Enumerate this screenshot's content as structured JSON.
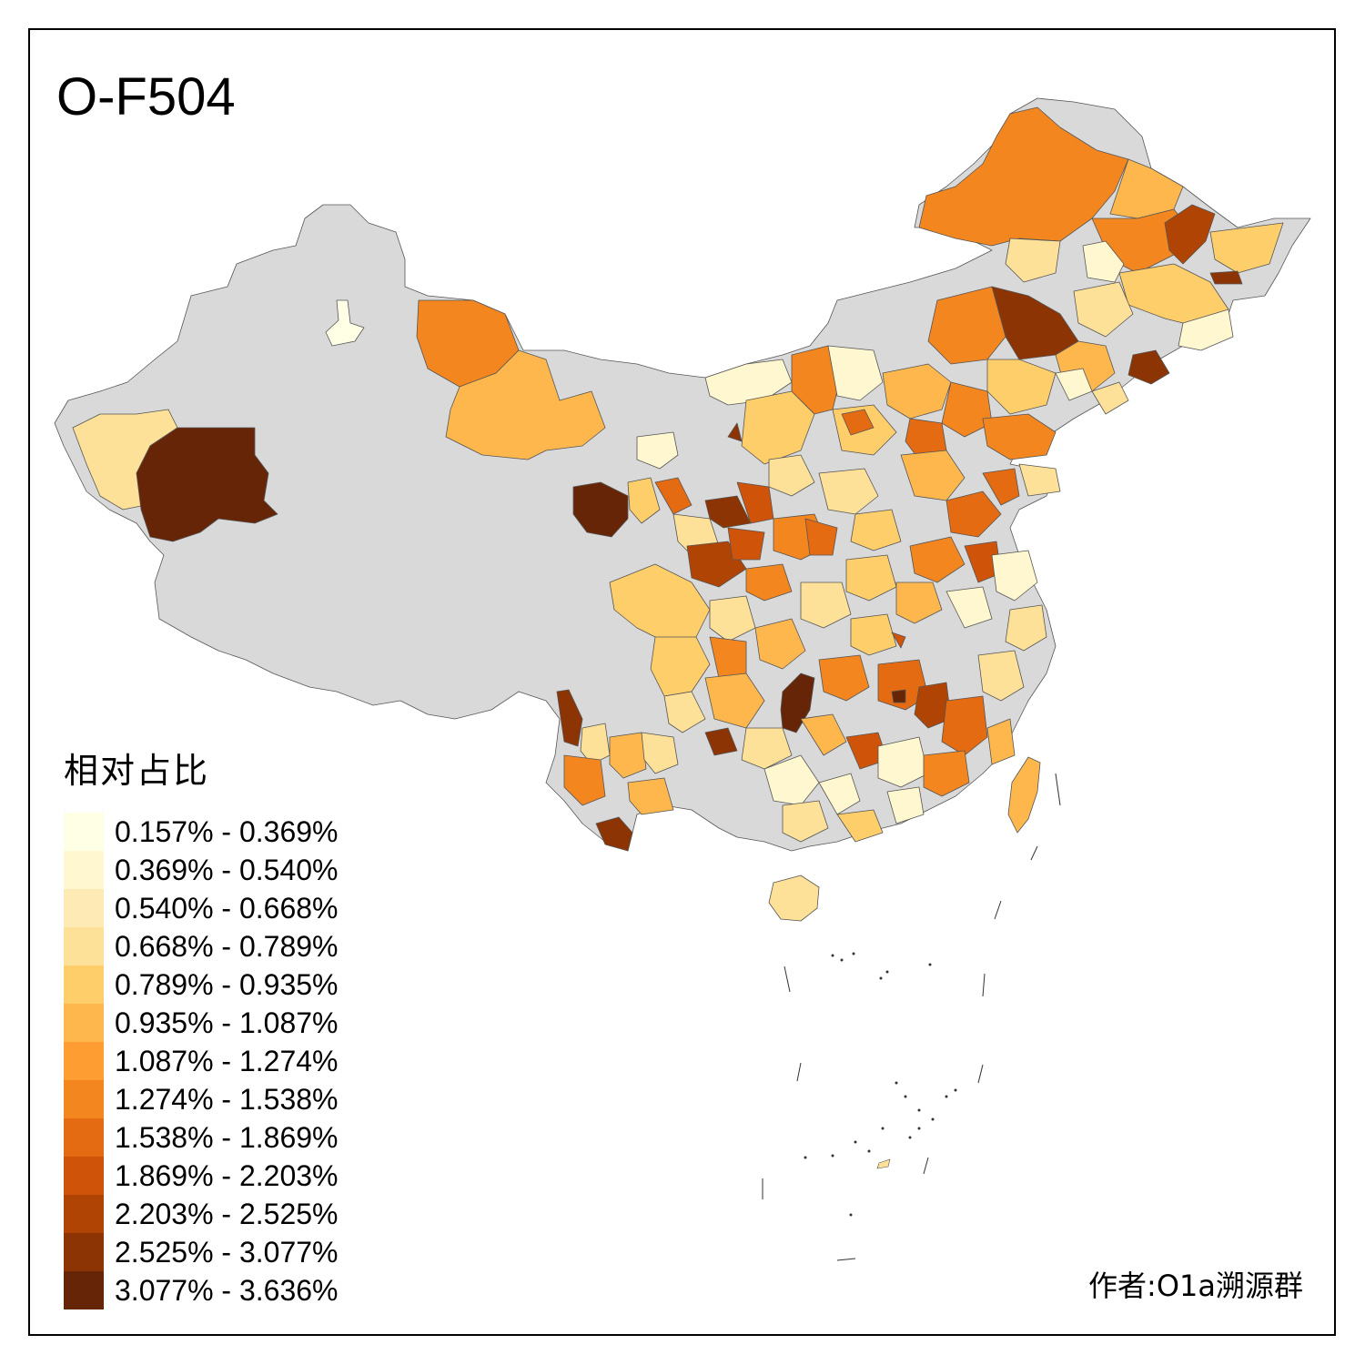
{
  "map": {
    "title": "O-F504",
    "credit": "作者:O1a溯源群",
    "no_data_color": "#d9d9d9",
    "legend": {
      "title": "相对占比",
      "items": [
        {
          "label": "0.157% - 0.369%",
          "color": "#ffffe5"
        },
        {
          "label": "0.369% - 0.540%",
          "color": "#fff7cf"
        },
        {
          "label": "0.540% - 0.668%",
          "color": "#feeab5"
        },
        {
          "label": "0.668% - 0.789%",
          "color": "#fee198"
        },
        {
          "label": "0.789% - 0.935%",
          "color": "#fece6a"
        },
        {
          "label": "0.935% - 1.087%",
          "color": "#feb74c"
        },
        {
          "label": "1.087% - 1.274%",
          "color": "#fe9d32"
        },
        {
          "label": "1.274% - 1.538%",
          "color": "#f3861f"
        },
        {
          "label": "1.538% - 1.869%",
          "color": "#e56b12"
        },
        {
          "label": "1.869% - 2.203%",
          "color": "#cf540a"
        },
        {
          "label": "2.203% - 2.525%",
          "color": "#b04404"
        },
        {
          "label": "2.525% - 3.077%",
          "color": "#8c3404"
        },
        {
          "label": "3.077% - 3.636%",
          "color": "#662506"
        }
      ]
    }
  }
}
